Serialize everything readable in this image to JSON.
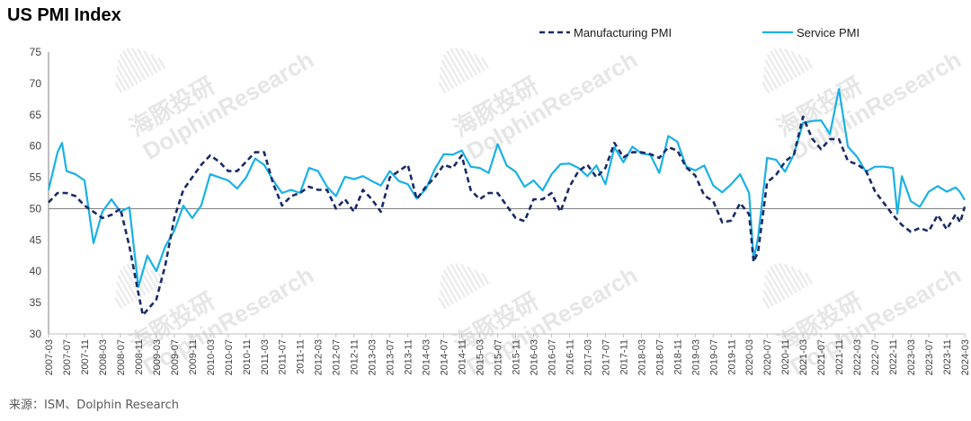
{
  "source": "来源：ISM、Dolphin Research",
  "watermark": {
    "cn": "海豚投研",
    "en": "DolphinResearch"
  },
  "colors": {
    "manufacturing": "#1a2a66",
    "service": "#19b1e6",
    "axis": "#808080"
  },
  "chart_data": {
    "type": "line",
    "title": "US PMI Index",
    "xlabel": "",
    "ylabel": "",
    "ylim": [
      30,
      75
    ],
    "yticks": [
      30,
      35,
      40,
      45,
      50,
      55,
      60,
      65,
      70,
      75
    ],
    "reference_line": 50,
    "grid": false,
    "legend_position": "top-right",
    "x_tick_labels": [
      "2007-03",
      "2007-07",
      "2007-11",
      "2008-03",
      "2008-07",
      "2008-11",
      "2009-03",
      "2009-07",
      "2009-11",
      "2010-03",
      "2010-07",
      "2010-11",
      "2011-03",
      "2011-07",
      "2011-11",
      "2012-03",
      "2012-07",
      "2012-11",
      "2013-03",
      "2013-07",
      "2013-11",
      "2014-03",
      "2014-07",
      "2014-11",
      "2015-03",
      "2015-07",
      "2015-11",
      "2016-03",
      "2016-07",
      "2016-11",
      "2017-03",
      "2017-07",
      "2017-11",
      "2018-03",
      "2018-07",
      "2018-11",
      "2019-03",
      "2019-07",
      "2019-11",
      "2020-03",
      "2020-07",
      "2020-11",
      "2021-03",
      "2021-07",
      "2021-11",
      "2022-03",
      "2022-07",
      "2022-11",
      "2023-03",
      "2023-07",
      "2023-11",
      "2024-03"
    ],
    "series": [
      {
        "name": "Manufacturing PMI",
        "style": "dashed",
        "points": [
          [
            "2007-03",
            51
          ],
          [
            "2007-05",
            52.5
          ],
          [
            "2007-07",
            52.5
          ],
          [
            "2007-09",
            52
          ],
          [
            "2007-11",
            50.5
          ],
          [
            "2008-01",
            49.5
          ],
          [
            "2008-03",
            48.5
          ],
          [
            "2008-05",
            49
          ],
          [
            "2008-07",
            50
          ],
          [
            "2008-09",
            44
          ],
          [
            "2008-11",
            36.5
          ],
          [
            "2008-12",
            33
          ],
          [
            "2009-03",
            35.5
          ],
          [
            "2009-05",
            41
          ],
          [
            "2009-07",
            48.5
          ],
          [
            "2009-09",
            53
          ],
          [
            "2009-11",
            55
          ],
          [
            "2010-01",
            57
          ],
          [
            "2010-03",
            58.5
          ],
          [
            "2010-05",
            57.5
          ],
          [
            "2010-07",
            56
          ],
          [
            "2010-09",
            56
          ],
          [
            "2010-11",
            57.5
          ],
          [
            "2011-01",
            59
          ],
          [
            "2011-03",
            59
          ],
          [
            "2011-05",
            54
          ],
          [
            "2011-07",
            50.5
          ],
          [
            "2011-09",
            52
          ],
          [
            "2011-11",
            52.5
          ],
          [
            "2012-01",
            53.5
          ],
          [
            "2012-03",
            53
          ],
          [
            "2012-05",
            53
          ],
          [
            "2012-07",
            50
          ],
          [
            "2012-09",
            51.5
          ],
          [
            "2012-11",
            49.5
          ],
          [
            "2013-01",
            53
          ],
          [
            "2013-03",
            51.5
          ],
          [
            "2013-05",
            49.5
          ],
          [
            "2013-07",
            55
          ],
          [
            "2013-09",
            56
          ],
          [
            "2013-11",
            57
          ],
          [
            "2014-01",
            51.5
          ],
          [
            "2014-03",
            53.5
          ],
          [
            "2014-05",
            55
          ],
          [
            "2014-07",
            57
          ],
          [
            "2014-09",
            56.5
          ],
          [
            "2014-11",
            58.5
          ],
          [
            "2015-01",
            53
          ],
          [
            "2015-03",
            51.5
          ],
          [
            "2015-05",
            52.5
          ],
          [
            "2015-07",
            52.5
          ],
          [
            "2015-09",
            50.5
          ],
          [
            "2015-11",
            48.5
          ],
          [
            "2016-01",
            48
          ],
          [
            "2016-03",
            51.5
          ],
          [
            "2016-05",
            51.5
          ],
          [
            "2016-07",
            52.5
          ],
          [
            "2016-09",
            49.5
          ],
          [
            "2016-11",
            53.5
          ],
          [
            "2017-01",
            56
          ],
          [
            "2017-03",
            57
          ],
          [
            "2017-05",
            55
          ],
          [
            "2017-07",
            56.5
          ],
          [
            "2017-09",
            60.5
          ],
          [
            "2017-11",
            58.2
          ],
          [
            "2018-01",
            59
          ],
          [
            "2018-03",
            59
          ],
          [
            "2018-05",
            58.7
          ],
          [
            "2018-07",
            58.1
          ],
          [
            "2018-09",
            59.8
          ],
          [
            "2018-11",
            59.3
          ],
          [
            "2019-01",
            56.6
          ],
          [
            "2019-03",
            55.3
          ],
          [
            "2019-05",
            52.1
          ],
          [
            "2019-07",
            51.2
          ],
          [
            "2019-09",
            47.8
          ],
          [
            "2019-11",
            48.1
          ],
          [
            "2020-01",
            50.9
          ],
          [
            "2020-03",
            49.1
          ],
          [
            "2020-04",
            41.5
          ],
          [
            "2020-05",
            43.1
          ],
          [
            "2020-07",
            54.2
          ],
          [
            "2020-09",
            55.4
          ],
          [
            "2020-11",
            57.5
          ],
          [
            "2021-01",
            58.7
          ],
          [
            "2021-03",
            64.7
          ],
          [
            "2021-05",
            61.2
          ],
          [
            "2021-07",
            59.5
          ],
          [
            "2021-09",
            61.1
          ],
          [
            "2021-11",
            61.1
          ],
          [
            "2022-01",
            57.6
          ],
          [
            "2022-03",
            57.1
          ],
          [
            "2022-05",
            56.1
          ],
          [
            "2022-07",
            52.8
          ],
          [
            "2022-09",
            50.9
          ],
          [
            "2022-11",
            49
          ],
          [
            "2023-01",
            47.4
          ],
          [
            "2023-03",
            46.3
          ],
          [
            "2023-05",
            46.9
          ],
          [
            "2023-07",
            46.4
          ],
          [
            "2023-09",
            49
          ],
          [
            "2023-11",
            46.7
          ],
          [
            "2024-01",
            49.1
          ],
          [
            "2024-02",
            47.8
          ],
          [
            "2024-03",
            50.3
          ]
        ]
      },
      {
        "name": "Service PMI",
        "style": "solid",
        "points": [
          [
            "2007-03",
            53
          ],
          [
            "2007-05",
            59
          ],
          [
            "2007-06",
            60.5
          ],
          [
            "2007-07",
            56
          ],
          [
            "2007-09",
            55.5
          ],
          [
            "2007-11",
            54.5
          ],
          [
            "2008-01",
            44.5
          ],
          [
            "2008-03",
            49.5
          ],
          [
            "2008-05",
            51.5
          ],
          [
            "2008-07",
            49.5
          ],
          [
            "2008-09",
            50.2
          ],
          [
            "2008-11",
            37.5
          ],
          [
            "2009-01",
            42.5
          ],
          [
            "2009-03",
            40
          ],
          [
            "2009-05",
            44
          ],
          [
            "2009-07",
            46.5
          ],
          [
            "2009-09",
            50.5
          ],
          [
            "2009-11",
            48.5
          ],
          [
            "2010-01",
            50.5
          ],
          [
            "2010-03",
            55.5
          ],
          [
            "2010-05",
            55
          ],
          [
            "2010-07",
            54.5
          ],
          [
            "2010-09",
            53.2
          ],
          [
            "2010-11",
            55
          ],
          [
            "2011-01",
            58
          ],
          [
            "2011-03",
            57
          ],
          [
            "2011-05",
            54.5
          ],
          [
            "2011-07",
            52.5
          ],
          [
            "2011-09",
            53
          ],
          [
            "2011-11",
            52.5
          ],
          [
            "2012-01",
            56.5
          ],
          [
            "2012-03",
            56
          ],
          [
            "2012-05",
            53.5
          ],
          [
            "2012-07",
            52
          ],
          [
            "2012-09",
            55.1
          ],
          [
            "2012-11",
            54.7
          ],
          [
            "2013-01",
            55.2
          ],
          [
            "2013-03",
            54.4
          ],
          [
            "2013-05",
            53.7
          ],
          [
            "2013-07",
            56
          ],
          [
            "2013-09",
            54.4
          ],
          [
            "2013-11",
            53.9
          ],
          [
            "2014-01",
            51.6
          ],
          [
            "2014-03",
            53.1
          ],
          [
            "2014-05",
            56.3
          ],
          [
            "2014-07",
            58.7
          ],
          [
            "2014-09",
            58.6
          ],
          [
            "2014-11",
            59.3
          ],
          [
            "2015-01",
            56.7
          ],
          [
            "2015-03",
            56.5
          ],
          [
            "2015-05",
            55.7
          ],
          [
            "2015-07",
            60.3
          ],
          [
            "2015-09",
            56.9
          ],
          [
            "2015-11",
            55.9
          ],
          [
            "2016-01",
            53.5
          ],
          [
            "2016-03",
            54.5
          ],
          [
            "2016-05",
            52.9
          ],
          [
            "2016-07",
            55.5
          ],
          [
            "2016-09",
            57.1
          ],
          [
            "2016-11",
            57.2
          ],
          [
            "2017-01",
            56.5
          ],
          [
            "2017-03",
            55.2
          ],
          [
            "2017-05",
            56.9
          ],
          [
            "2017-07",
            53.9
          ],
          [
            "2017-09",
            59.8
          ],
          [
            "2017-11",
            57.4
          ],
          [
            "2018-01",
            59.9
          ],
          [
            "2018-03",
            58.8
          ],
          [
            "2018-05",
            58.6
          ],
          [
            "2018-07",
            55.7
          ],
          [
            "2018-09",
            61.6
          ],
          [
            "2018-11",
            60.7
          ],
          [
            "2019-01",
            56.7
          ],
          [
            "2019-03",
            56.1
          ],
          [
            "2019-05",
            56.9
          ],
          [
            "2019-07",
            53.7
          ],
          [
            "2019-09",
            52.6
          ],
          [
            "2019-11",
            53.9
          ],
          [
            "2020-01",
            55.5
          ],
          [
            "2020-03",
            52.5
          ],
          [
            "2020-04",
            41.8
          ],
          [
            "2020-05",
            45.4
          ],
          [
            "2020-07",
            58.1
          ],
          [
            "2020-09",
            57.8
          ],
          [
            "2020-11",
            55.9
          ],
          [
            "2021-01",
            58.7
          ],
          [
            "2021-03",
            63.7
          ],
          [
            "2021-05",
            64
          ],
          [
            "2021-07",
            64.1
          ],
          [
            "2021-09",
            61.9
          ],
          [
            "2021-11",
            69.1
          ],
          [
            "2022-01",
            59.9
          ],
          [
            "2022-03",
            58.3
          ],
          [
            "2022-05",
            55.9
          ],
          [
            "2022-07",
            56.7
          ],
          [
            "2022-09",
            56.7
          ],
          [
            "2022-11",
            56.5
          ],
          [
            "2022-12",
            49.2
          ],
          [
            "2023-01",
            55.2
          ],
          [
            "2023-03",
            51.2
          ],
          [
            "2023-05",
            50.3
          ],
          [
            "2023-07",
            52.7
          ],
          [
            "2023-09",
            53.6
          ],
          [
            "2023-11",
            52.7
          ],
          [
            "2024-01",
            53.4
          ],
          [
            "2024-02",
            52.6
          ],
          [
            "2024-03",
            51.4
          ]
        ]
      }
    ]
  }
}
